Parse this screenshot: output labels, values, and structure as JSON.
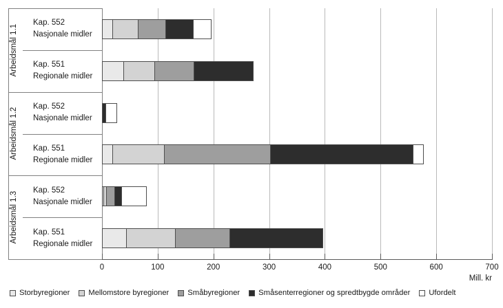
{
  "chart_data": {
    "type": "bar",
    "orientation": "horizontal",
    "stacked": true,
    "title": "",
    "xlabel": "Mill. kr",
    "xlim": [
      0,
      700
    ],
    "xticks": [
      0,
      100,
      200,
      300,
      400,
      500,
      600,
      700
    ],
    "grid": true,
    "legend_position": "bottom",
    "series": [
      {
        "name": "Storbyregioner",
        "color": "#e9e9e9"
      },
      {
        "name": "Mellomstore byregioner",
        "color": "#d3d3d3"
      },
      {
        "name": "Småbyregioner",
        "color": "#9e9e9e"
      },
      {
        "name": "Småsenterregioner og spredtbygde områder",
        "color": "#2d2d2d"
      },
      {
        "name": "Ufordelt",
        "color": "#ffffff"
      }
    ],
    "groups": [
      {
        "label": "Arbeidsmål 1.1",
        "rows": [
          {
            "label_line1": "Kap. 552",
            "label_line2": "Nasjonale midler",
            "values": [
              20,
              45,
              50,
              50,
              32
            ]
          },
          {
            "label_line1": "Kap. 551",
            "label_line2": "Regionale midler",
            "values": [
              39,
              56,
              71,
              106,
              0
            ]
          }
        ]
      },
      {
        "label": "Arbeidsmål 1.2",
        "rows": [
          {
            "label_line1": "Kap. 552",
            "label_line2": "Nasjonale midler",
            "values": [
              0,
              0,
              0,
              8,
              19
            ]
          },
          {
            "label_line1": "Kap. 551",
            "label_line2": "Regionale midler",
            "values": [
              20,
              92,
              191,
              256,
              19
            ]
          }
        ]
      },
      {
        "label": "Arbeidsmål 1.3",
        "rows": [
          {
            "label_line1": "Kap. 552",
            "label_line2": "Nasjonale midler",
            "values": [
              4,
              5,
              14,
              13,
              44
            ]
          },
          {
            "label_line1": "Kap. 551",
            "label_line2": "Regionale midler",
            "values": [
              45,
              87,
              98,
              167,
              0
            ]
          }
        ]
      }
    ]
  },
  "colors": {
    "gridline": "#b9b9b9",
    "axis": "#595959",
    "category_lines": "#808080",
    "segment_border": "#4d4d4d",
    "text": "#1a1a1a",
    "background": "#ffffff"
  }
}
